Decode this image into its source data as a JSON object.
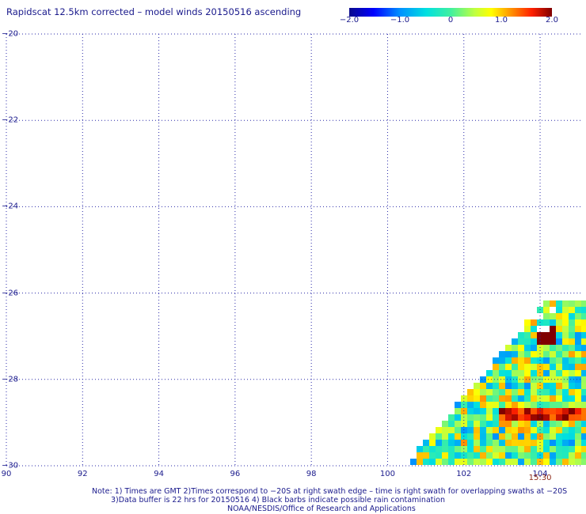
{
  "title": "Rapidscat 12.5km corrected – model winds 20150516 ascending",
  "colorbar": {
    "ticks": [
      "−2.0",
      "−1.0",
      "0",
      "1.0",
      "2.0"
    ],
    "values": [
      -2.0,
      -1.0,
      0,
      1.0,
      2.0
    ],
    "range": [
      -2.0,
      2.0
    ]
  },
  "map": {
    "lat_labels": [
      "−20",
      "−22",
      "−24",
      "−26",
      "−28",
      "−30"
    ],
    "lat_values": [
      -20,
      -22,
      -24,
      -26,
      -28,
      -30
    ],
    "lon_labels": [
      "90",
      "92",
      "94",
      "96",
      "98",
      "100",
      "102",
      "104"
    ],
    "lon_values": [
      90,
      92,
      94,
      96,
      98,
      100,
      102,
      104
    ],
    "lon_range": [
      90,
      105.1
    ],
    "lat_range": [
      -20,
      -30
    ],
    "grid": true,
    "swath_time": "15:30",
    "swath_time_lon": 104
  },
  "notes": {
    "line1": "Note: 1) Times are GMT 2)Times correspond to −20S at right swath edge – time is right swath for overlapping swaths at −20S",
    "line2": "3)Data buffer is 22 hrs for 20150516 4) Black barbs indicate possible rain contamination",
    "line3": "NOAA/NESDIS/Office of Research and Applications"
  },
  "colors": {
    "text": "#1a1a8c",
    "grid": "#2a2aa8",
    "time": "#8c2a1a"
  }
}
